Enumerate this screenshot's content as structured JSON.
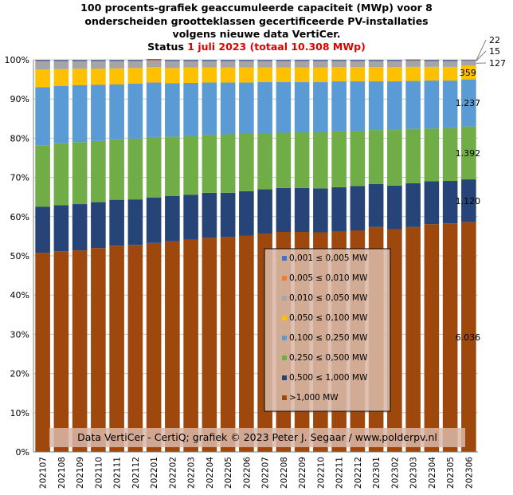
{
  "title": {
    "line1": "100 procents-grafiek geaccumuleerde capaciteit (MWp) voor 8",
    "line2": "onderscheiden grootteklassen gecertificeerde PV-installaties",
    "line3": "volgens nieuwe data VertiCer.",
    "status_prefix": "Status ",
    "status_date": "1 juli 2023",
    "status_total": " (totaal 10.308 MWp)"
  },
  "watermark": "Data VertiCer - CertiQ; grafiek © 2023 Peter J. Segaar / www.polderpv.nl",
  "colors": {
    "series": [
      "#4472c4",
      "#ed7d31",
      "#a5a5a5",
      "#ffc000",
      "#5b9bd5",
      "#70ad47",
      "#264478",
      "#9e480e"
    ],
    "legend_bg": "#d9b8a8",
    "watermark_bg": "#d9b8a8",
    "status_red": "#e00000"
  },
  "chart_data": {
    "type": "bar",
    "stacked": true,
    "normalized_percent": true,
    "ylim": [
      0,
      100
    ],
    "yticks": [
      "0%",
      "10%",
      "20%",
      "30%",
      "40%",
      "50%",
      "60%",
      "70%",
      "80%",
      "90%",
      "100%"
    ],
    "grid": true,
    "legend_position": "center-right",
    "categories": [
      "202107",
      "202108",
      "202109",
      "202110",
      "202111",
      "202112",
      "202201",
      "202202",
      "202203",
      "202204",
      "202205",
      "202206",
      "202207",
      "202208",
      "202209",
      "202210",
      "202211",
      "202212",
      "202301",
      "202302",
      "202303",
      "202304",
      "202305",
      "202306"
    ],
    "series": [
      {
        "name": "0,001 ≤  0,005 MW",
        "values": [
          0.3,
          0.3,
          0.3,
          0.3,
          0.3,
          0.3,
          0.3,
          0.3,
          0.3,
          0.3,
          0.3,
          0.3,
          0.3,
          0.3,
          0.3,
          0.3,
          0.3,
          0.3,
          0.3,
          0.3,
          0.3,
          0.3,
          0.3,
          0.2
        ]
      },
      {
        "name": "0,005 ≤  0,010 MW",
        "values": [
          0.2,
          0.2,
          0.2,
          0.2,
          0.2,
          0.2,
          0.2,
          0.2,
          0.2,
          0.2,
          0.2,
          0.2,
          0.2,
          0.2,
          0.2,
          0.2,
          0.2,
          0.2,
          0.2,
          0.2,
          0.2,
          0.2,
          0.2,
          0.1
        ]
      },
      {
        "name": "0,010 ≤  0,050 MW",
        "values": [
          2.0,
          1.9,
          1.8,
          1.8,
          1.7,
          1.6,
          1.6,
          1.6,
          1.5,
          1.5,
          1.5,
          1.5,
          1.5,
          1.5,
          1.5,
          1.5,
          1.4,
          1.4,
          1.4,
          1.4,
          1.4,
          1.3,
          1.3,
          1.2
        ]
      },
      {
        "name": "0,050 ≤  0,100 MW",
        "values": [
          4.5,
          4.3,
          4.2,
          4.1,
          4.1,
          4.0,
          3.9,
          3.9,
          3.9,
          3.8,
          3.8,
          3.8,
          3.7,
          3.7,
          3.7,
          3.7,
          3.6,
          3.6,
          3.6,
          3.6,
          3.6,
          3.5,
          3.5,
          3.5
        ]
      },
      {
        "name": "0,100 ≤  0,250 MW",
        "values": [
          14.8,
          14.6,
          14.5,
          14.3,
          14.0,
          14.0,
          13.9,
          13.6,
          13.6,
          13.3,
          13.2,
          13.1,
          13.0,
          12.9,
          12.8,
          12.8,
          12.7,
          12.7,
          12.4,
          12.4,
          12.2,
          12.2,
          12.1,
          12.0
        ]
      },
      {
        "name": "0,250 ≤  0,500 MW",
        "values": [
          15.7,
          15.8,
          15.8,
          15.6,
          15.4,
          15.5,
          15.4,
          15.1,
          14.9,
          14.8,
          14.9,
          14.6,
          14.3,
          14.1,
          14.2,
          14.3,
          14.3,
          14.0,
          13.8,
          14.2,
          13.9,
          13.5,
          13.5,
          13.5
        ]
      },
      {
        "name": "0,500 ≤  1,000 MW",
        "values": [
          11.7,
          11.7,
          11.8,
          11.7,
          11.7,
          11.6,
          11.6,
          11.6,
          11.5,
          11.5,
          11.3,
          11.4,
          11.3,
          11.2,
          11.2,
          11.2,
          11.2,
          11.3,
          10.9,
          11.1,
          11.1,
          10.9,
          10.8,
          10.9
        ]
      },
      {
        "name": ">1,000 MW",
        "values": [
          50.8,
          51.2,
          51.4,
          52.0,
          52.6,
          52.8,
          53.3,
          53.7,
          54.1,
          54.6,
          54.8,
          55.1,
          55.7,
          56.1,
          56.1,
          56.0,
          56.3,
          56.5,
          57.4,
          56.8,
          57.4,
          58.1,
          58.3,
          58.6
        ]
      }
    ],
    "data_labels": [
      {
        "series": ">1,000 MW",
        "category": "202306",
        "text": "6.036"
      },
      {
        "series": "0,500 ≤  1,000 MW",
        "category": "202306",
        "text": "1.120"
      },
      {
        "series": "0,250 ≤  0,500 MW",
        "category": "202306",
        "text": "1.392"
      },
      {
        "series": "0,100 ≤  0,250 MW",
        "category": "202306",
        "text": "1.237"
      },
      {
        "series": "0,050 ≤  0,100 MW",
        "category": "202306",
        "text": "359"
      },
      {
        "series": "0,010 ≤  0,050 MW",
        "category": "202306",
        "text": "127"
      },
      {
        "series": "0,005 ≤  0,010 MW",
        "category": "202306",
        "text": "15"
      },
      {
        "series": "0,001 ≤  0,005 MW",
        "category": "202306",
        "text": "22"
      }
    ]
  }
}
